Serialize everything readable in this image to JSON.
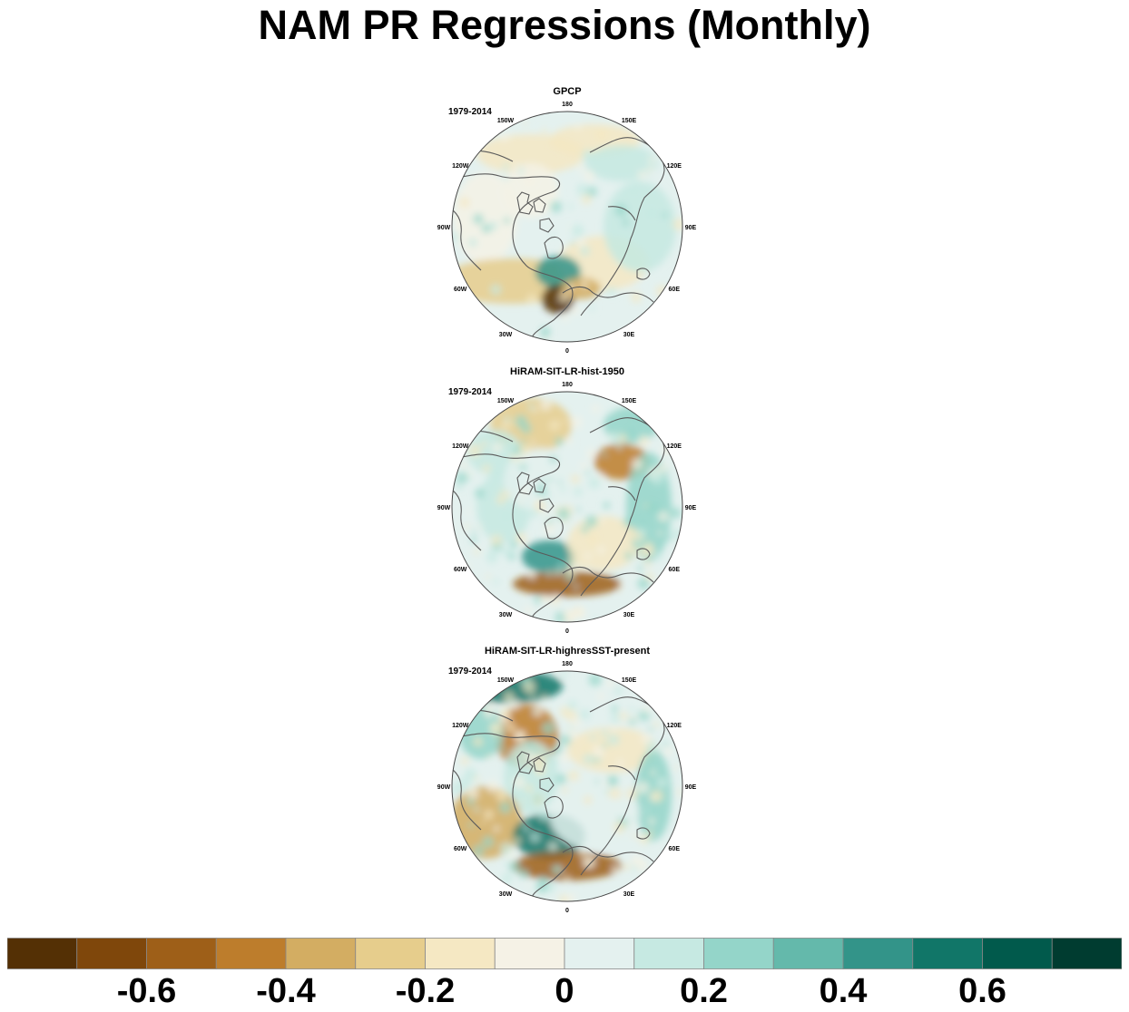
{
  "title": "NAM PR Regressions (Monthly)",
  "chart_data": [
    {
      "type": "heatmap",
      "projection": "north-polar-stereographic",
      "title": "GPCP",
      "period": "1979-2014",
      "lon_labels": [
        "180",
        "150E",
        "120E",
        "90E",
        "60E",
        "30E",
        "0",
        "30W",
        "60W",
        "90W",
        "120W",
        "150W"
      ]
    },
    {
      "type": "heatmap",
      "projection": "north-polar-stereographic",
      "title": "HiRAM-SIT-LR-hist-1950",
      "period": "1979-2014",
      "lon_labels": [
        "180",
        "150E",
        "120E",
        "90E",
        "60E",
        "30E",
        "0",
        "30W",
        "60W",
        "90W",
        "120W",
        "150W"
      ]
    },
    {
      "type": "heatmap",
      "projection": "north-polar-stereographic",
      "title": "HiRAM-SIT-LR-highresSST-present",
      "period": "1979-2014",
      "lon_labels": [
        "180",
        "150E",
        "120E",
        "90E",
        "60E",
        "30E",
        "0",
        "30W",
        "60W",
        "90W",
        "120W",
        "150W"
      ]
    }
  ],
  "colorbar": {
    "colors": [
      "#543005",
      "#7f470b",
      "#9e5f18",
      "#bd7d2c",
      "#d3ad62",
      "#e6cd8c",
      "#f5e8c3",
      "#f5f2e6",
      "#e4f1ef",
      "#c6e9e2",
      "#94d5c9",
      "#64b9ab",
      "#339489",
      "#117668",
      "#015a4c",
      "#003c30"
    ],
    "boundaries": [
      -0.7,
      -0.6,
      -0.5,
      -0.4,
      -0.3,
      -0.2,
      -0.1,
      0,
      0.1,
      0.2,
      0.3,
      0.4,
      0.5,
      0.6,
      0.7
    ],
    "tick_values": [
      -0.6,
      -0.4,
      -0.2,
      0,
      0.2,
      0.4,
      0.6
    ],
    "tick_labels": [
      "-0.6",
      "-0.4",
      "-0.2",
      "0",
      "0.2",
      "0.4",
      "0.6"
    ]
  }
}
